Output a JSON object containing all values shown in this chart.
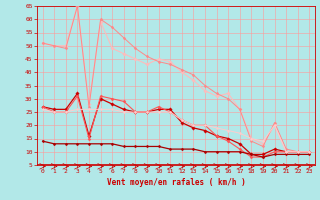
{
  "title": "Vent moyen/en rafales ( km/h )",
  "bg_color": "#b2e8e8",
  "grid_color": "#ff9999",
  "xlim": [
    -0.5,
    23.5
  ],
  "ylim": [
    5,
    65
  ],
  "yticks": [
    5,
    10,
    15,
    20,
    25,
    30,
    35,
    40,
    45,
    50,
    55,
    60,
    65
  ],
  "xticks": [
    0,
    1,
    2,
    3,
    4,
    5,
    6,
    7,
    8,
    9,
    10,
    11,
    12,
    13,
    14,
    15,
    16,
    17,
    18,
    19,
    20,
    21,
    22,
    23
  ],
  "series": [
    {
      "x": [
        0,
        1,
        2,
        3,
        4,
        5,
        6,
        7,
        8,
        9,
        10,
        11,
        12,
        13,
        14,
        15,
        16,
        17,
        18,
        19,
        20,
        21,
        22,
        23
      ],
      "y": [
        27,
        26,
        26,
        32,
        16,
        30,
        28,
        26,
        25,
        25,
        26,
        26,
        21,
        19,
        18,
        16,
        15,
        13,
        9,
        9,
        11,
        10,
        10,
        10
      ],
      "color": "#cc0000",
      "lw": 0.9,
      "marker": "D",
      "ms": 1.8
    },
    {
      "x": [
        0,
        1,
        2,
        3,
        4,
        5,
        6,
        7,
        8,
        9,
        10,
        11,
        12,
        13,
        14,
        15,
        16,
        17,
        18,
        19,
        20,
        21,
        22,
        23
      ],
      "y": [
        27,
        25,
        25,
        31,
        15,
        31,
        30,
        29,
        25,
        25,
        27,
        25,
        22,
        20,
        20,
        16,
        14,
        11,
        8,
        8,
        10,
        10,
        10,
        10
      ],
      "color": "#ff5555",
      "lw": 0.8,
      "marker": "D",
      "ms": 1.6
    },
    {
      "x": [
        0,
        1,
        2,
        3,
        4,
        5,
        6,
        7,
        8,
        9,
        10,
        11,
        12,
        13,
        14,
        15,
        16,
        17,
        18,
        19,
        20,
        21,
        22,
        23
      ],
      "y": [
        51,
        50,
        50,
        65,
        28,
        59,
        49,
        47,
        45,
        43,
        45,
        44,
        40,
        37,
        33,
        31,
        32,
        26,
        15,
        13,
        20,
        10,
        10,
        10
      ],
      "color": "#ffbbbb",
      "lw": 0.8,
      "marker": "D",
      "ms": 1.8
    },
    {
      "x": [
        0,
        1,
        2,
        3,
        4,
        5,
        6,
        7,
        8,
        9,
        10,
        11,
        12,
        13,
        14,
        15,
        16,
        17,
        18,
        19,
        20,
        21,
        22,
        23
      ],
      "y": [
        51,
        50,
        49,
        65,
        27,
        60,
        57,
        53,
        49,
        46,
        44,
        43,
        41,
        39,
        35,
        32,
        30,
        26,
        14,
        12,
        21,
        11,
        10,
        10
      ],
      "color": "#ff8888",
      "lw": 0.7,
      "marker": "D",
      "ms": 1.5
    },
    {
      "x": [
        0,
        1,
        2,
        3,
        4,
        5,
        6,
        7,
        8,
        9,
        10,
        11,
        12,
        13,
        14,
        15,
        16,
        17,
        18,
        19,
        20,
        21,
        22,
        23
      ],
      "y": [
        14,
        13,
        13,
        13,
        13,
        13,
        13,
        12,
        12,
        12,
        12,
        11,
        11,
        11,
        10,
        10,
        10,
        10,
        9,
        8,
        9,
        9,
        9,
        9
      ],
      "color": "#aa0000",
      "lw": 0.9,
      "marker": "D",
      "ms": 1.5
    },
    {
      "x": [
        0,
        1,
        2,
        3,
        4,
        5,
        6,
        7,
        8,
        9,
        10,
        11,
        12,
        13,
        14,
        15,
        16,
        17,
        18,
        19,
        20,
        21,
        22,
        23
      ],
      "y": [
        26,
        25,
        25,
        26,
        26,
        26,
        26,
        25,
        25,
        25,
        25,
        25,
        22,
        20,
        20,
        19,
        18,
        17,
        15,
        14,
        20,
        10,
        10,
        10
      ],
      "color": "#ffcccc",
      "lw": 0.7,
      "marker": "D",
      "ms": 1.4
    }
  ],
  "arrow_color": "#cc0000",
  "axis_color": "#cc0000",
  "tick_labelsize": 4.5,
  "xlabel_fontsize": 5.5
}
